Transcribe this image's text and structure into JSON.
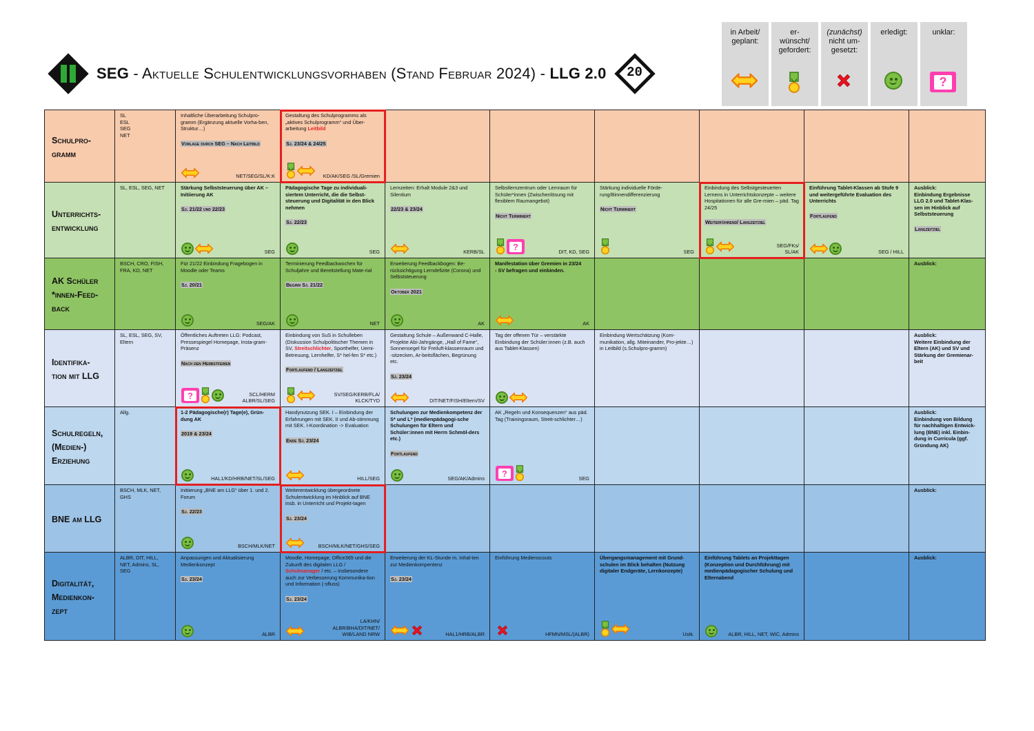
{
  "header": {
    "title_prefix": "SEG",
    "title_main": " - Aktuelle Schulentwicklungsvorhaben (Stand Februar 2024) - ",
    "title_suffix": "LLG 2.0",
    "logo_right_text": "20"
  },
  "legend": [
    {
      "label": "in Arbeit/\ngeplant:",
      "icon": "arrow-icon"
    },
    {
      "label": "er-\nwünscht/\ngefordert:",
      "icon": "medal-icon"
    },
    {
      "label_italic": "(zunächst)",
      "label": "\nnicht um-\ngesetzt:",
      "icon": "cross-icon"
    },
    {
      "label": "erledigt:",
      "icon": "smiley-icon"
    },
    {
      "label": "unklar:",
      "icon": "question-icon"
    }
  ],
  "colors": {
    "schulprogramm": "#f8cbad",
    "unterricht": "#c5e0b4",
    "akfeedback": "#8fc464",
    "identifikation": "#dae3f3",
    "schulregeln": "#bdd7ee",
    "bne": "#9dc3e6",
    "digital": "#5b9bd5",
    "highlight": "#e41f1f"
  },
  "rows": [
    {
      "id": "schulprogramm",
      "title": "Schulpro-\ngramm",
      "resp": "SL\nESL\nSEG\nNET",
      "cells": [
        {
          "text": "Inhaltliche Überarbeitung Schulpro-gramm (Ergänzung aktuelle Vorha-ben, Struktur…)",
          "note": "Vorlage durch SEG – Nach Leitbild",
          "owner": "NET/SEG/SL/K:K",
          "icons": [
            "arrow-icon"
          ]
        },
        {
          "text": "Gestaltung des Schulprogramms als „aktives Schulprogramm“ und Über-arbeitung",
          "red": "Leitbild",
          "note": "Sj. 23/24 & 24/25",
          "owner": "KD/AK/SEG /SL/Gremien",
          "icons": [
            "medal-icon",
            "arrow-icon"
          ],
          "hl": true
        },
        {},
        {},
        {},
        {},
        {},
        {}
      ]
    },
    {
      "id": "unterricht",
      "title": "Unterrichts-\nentwicklung",
      "resp": "SL, ESL, SEG, NET",
      "cells": [
        {
          "text": "Stärkung Selbststeuerung über AK – Initiierung AK",
          "bold": true,
          "note": "Sj. 21/22 und 22/23",
          "owner": "SEG",
          "icons": [
            "smiley-icon",
            "arrow-icon"
          ]
        },
        {
          "text": "Pädagogische Tage zu individuali-siertem Unterricht, die die Selbst-steuerung und Digitalität in den Blick nehmen",
          "bold": true,
          "note": "Sj. 22/23",
          "owner": "SEG",
          "icons": [
            "smiley-icon"
          ]
        },
        {
          "text": "Lernzeiten: Erhalt Module 2&3 und Silentium",
          "note": "22/23 & 23/24",
          "owner": "KERB/SL",
          "icons": [
            "arrow-icon"
          ]
        },
        {
          "text": "Selbstlernzentrum oder Lernraum für Schüler*innen (Zwischenlösung mit flexiblem Raumangebot)",
          "note": "Nicht Terminiert",
          "owner": "DIT, KD, SEG",
          "icons": [
            "medal-icon",
            "question-icon"
          ]
        },
        {
          "text": "Stärkung individuelle Förde-rung/Binnendifferenzierung",
          "note": "Nicht Terminiert",
          "owner": "SEG",
          "icons": [
            "medal-icon"
          ]
        },
        {
          "text": "Einbindung des Selbstgesteuerten Lernens in Unterrichtskonzepte – weitere Hospitationen für alle Gre-mien – päd. Tag 24/25",
          "note": "Weiterführend/ Langzeitziel",
          "owner": "SEG/FKs/\nSL/AK",
          "icons": [
            "medal-icon",
            "arrow-icon"
          ],
          "hl": true
        },
        {
          "text": "Einführung Tablet-Klassen ab Stufe 9 und weitergeführte Evaluation des Unterrichts",
          "bold": true,
          "note": "Fortlaufend",
          "owner": "SEG / HILL",
          "icons": [
            "arrow-icon",
            "smiley-icon"
          ]
        },
        {
          "text": "Ausblick:\nEinbindung Ergebnisse LLG 2.0 und Tablet-Klas-sen im Hinblick auf Selbststeuerung",
          "bold": true,
          "note": "Langzeitziel",
          "owner": "",
          "icons": []
        }
      ]
    },
    {
      "id": "akfeedback",
      "title": "AK Schüler\n*innen-Feed-\nback",
      "resp": "BSCH, CRO, FISH, FRA, KD, NET",
      "cells": [
        {
          "text": "Für 21/22 Einbindung Fragebogen in Moodle oder Teams",
          "note": "Sj. 20/21",
          "owner": "SEG/AK",
          "icons": [
            "smiley-icon"
          ]
        },
        {
          "text": "Terminierung Feedbackwochen für Schuljahre und Bereitstellung Mate-rial",
          "note": "Beginn Sj. 21/22",
          "owner": "NET",
          "icons": [
            "smiley-icon"
          ]
        },
        {
          "text": "Erweiterung Feedbackbogen: Be-rücksichtigung Lerndefizite (Corona) und Selbststeuerung",
          "note": "Oktober 2021",
          "owner": "AK",
          "icons": [
            "smiley-icon"
          ]
        },
        {
          "text": "Manifestation über Gremien in 23/24\n- SV befragen und einbinden.",
          "bold": true,
          "note": "",
          "owner": "AK",
          "icons": [
            "arrow-icon"
          ]
        },
        {},
        {},
        {},
        {
          "text": "Ausblick:",
          "bold": true,
          "note": "",
          "owner": "",
          "icons": []
        }
      ]
    },
    {
      "id": "identifikation",
      "title": "Identifika-\ntion mit LLG",
      "resp": "SL, ESL, SEG, SV, Eltern",
      "cells": [
        {
          "text": "Öffentliches Auftreten LLG: Podcast, Pressespiegel Homepage, Insta-gram-Präsenz",
          "note": "Nach den Herbstferien",
          "owner": "SCL/HERM\nALBR/SL/SEG",
          "icons": [
            "question-icon",
            "medal-icon",
            "smiley-icon"
          ]
        },
        {
          "text": "Einbindung von SuS in Schulleben (Diskussion Schulpolitischer Themen in SV,",
          "red": "Streitschlichter",
          "text2": ", Sporthelfer, Uemi-Betreuung, Lernhelfer, S* hel-fen S* etc.)",
          "note": "Fortlaufend / Langzeitziel",
          "owner": "SV/SEG/KERB/FLA/\nKLCK/TYD",
          "icons": [
            "medal-icon",
            "arrow-icon"
          ]
        },
        {
          "text": "Gestaltung Schule – Außenwand C-Halle, Projekte Abi-Jahrgänge, „Hall of Fame“, Sonnensegel für Freiluft-klassenraum und -sitzecken, Ar-beitsflächen, Begrünung etc.",
          "note": "Sj. 23/24",
          "owner": "DIT/NET/FISH/Eltern/SV",
          "icons": [
            "arrow-icon"
          ]
        },
        {
          "text": "Tag der offenen Tür – verstärkte Einbindung der Schüler:innen (z.B. auch aus Tablet-Klassen)",
          "note": "",
          "owner": "",
          "icons": [
            "smiley-icon",
            "arrow-icon"
          ]
        },
        {
          "text": "Einbindung Wertschätzung (Kom-munikation, allg. Miteinander, Pro-jekte…) in Leitbild (s.Schulpro-gramm)",
          "note": "",
          "owner": "",
          "icons": []
        },
        {},
        {},
        {
          "text": "Ausblick:\nWeitere Einbindung der Eltern (AK) und SV und Stärkung der Gremienar-beit",
          "bold": true,
          "note": "",
          "owner": "",
          "icons": []
        }
      ]
    },
    {
      "id": "schulregeln",
      "title": "Schulregeln,\n(Medien-)\nErziehung",
      "resp": "Allg.",
      "cells": [
        {
          "text": "1-2 Pädagogische(r) Tage(e), Grün-dung AK",
          "bold": true,
          "note": "2019 & 23/24",
          "owner": "HAL1/KD/HRB/NET/SL/SEG",
          "icons": [
            "smiley-icon"
          ],
          "hl": true
        },
        {
          "text": "Handynutzung SEK. I – Einbindung der Erfahrungen mit SEK. II und Ab-stimmung mit SEK. I-Koordination -> Evaluation",
          "note": "Ende Sj. 23/24",
          "owner": "HILL/SEG",
          "icons": [
            "arrow-icon"
          ]
        },
        {
          "text": "Schulungen zur Medienkompetenz der S* und L* (medienpädagogi-sche Schulungen für Eltern und Schüler:innen mit Herrn Schmöl-ders etc.)",
          "bold": true,
          "note": "Fortlaufend",
          "owner": "SEG/AK/Admins",
          "icons": [
            "smiley-icon"
          ]
        },
        {
          "text": "AK „Regeln und Konsequenzen“ aus päd. Tag (Trainingsraum, Streit-schlichter…)",
          "note": "",
          "owner": "SEG",
          "icons": [
            "question-icon",
            "medal-icon"
          ]
        },
        {},
        {},
        {},
        {
          "text": "Ausblick:\nEinbindung von Bildung für nachhaltigen Entwick-lung (BNE) inkl. Einbin-dung in Curricula (ggf. Gründung AK)",
          "bold": true,
          "note": "",
          "owner": "",
          "icons": []
        }
      ]
    },
    {
      "id": "bne",
      "title": "BNE am LLG",
      "resp": "BSCH, MLK, NET, GHS",
      "cells": [
        {
          "text": "Initiierung „BNE am LLG“ über 1. und 2. Forum",
          "note": "Sj. 22/23",
          "owner": "BSCH/MLK/NET",
          "icons": [
            "smiley-icon"
          ]
        },
        {
          "text": "Weiterentwicklung übergeordnete Schulentwicklung im Hinblick auf BNE insb. in Unterricht und Projekt-tagen",
          "note": "Sj. 23/24",
          "owner": "BSCH/MLK/NET/GHS/SEG",
          "icons": [
            "arrow-icon"
          ],
          "hl": true
        },
        {},
        {},
        {},
        {},
        {},
        {
          "text": "Ausblick:",
          "bold": true,
          "note": "",
          "owner": "",
          "icons": []
        }
      ]
    },
    {
      "id": "digital",
      "title": "Digitalität,\nMedienkon-\nzept",
      "resp": "ALBR, DIT, HILL, NET, Admins, SL, SEG",
      "cells": [
        {
          "text": "Anpassungen und Aktualisierung Medienkonzept",
          "note": "Sj. 23/24",
          "owner": "ALBR",
          "icons": [
            "smiley-icon"
          ]
        },
        {
          "text": "Moodle, Homepage, Office365 und die Zukunft des digitalen LLG /",
          "red": "Schulmanager",
          "text2": " / etc. – insbesondere auch zur Verbesserung Kommunika-tion und Information (-sfluss)",
          "note": "Sj. 23/24",
          "owner": "LA/KHN/\nALBR/BHA/DIT/NET/\nWIB/LAND NRW",
          "icons": [
            "arrow-icon"
          ]
        },
        {
          "text": "Erweiterung der KL-Stunde m. Inhal-ten zur Medienkompentenz",
          "note": "Sj. 23/24",
          "owner": "HAL1/HRB/ALBR",
          "icons": [
            "arrow-icon",
            "cross-icon"
          ]
        },
        {
          "text": "Einführung Medienscouts",
          "note": "",
          "owner": "HFMN/MSL/(ALBR)",
          "icons": [
            "cross-icon"
          ]
        },
        {
          "text": "Übergangsmanagement mit Grund-schulen im Blick behalten (Nutzung digitaler Endgeräte, Lernkonzepte)",
          "bold": true,
          "note": "",
          "owner": "Ustk.",
          "icons": [
            "medal-icon",
            "arrow-icon"
          ]
        },
        {
          "text": "Einführung Tablets an Projekttagen (Konzeption und Durchführung) mit medienpädagogischer Schulung und Elternabend",
          "bold": true,
          "note": "",
          "owner": "ALBR, HILL, NET, WIC, Admins",
          "icons": [
            "smiley-icon"
          ]
        },
        {},
        {
          "text": "Ausblick:",
          "bold": true,
          "note": "",
          "owner": "",
          "icons": []
        }
      ]
    }
  ]
}
